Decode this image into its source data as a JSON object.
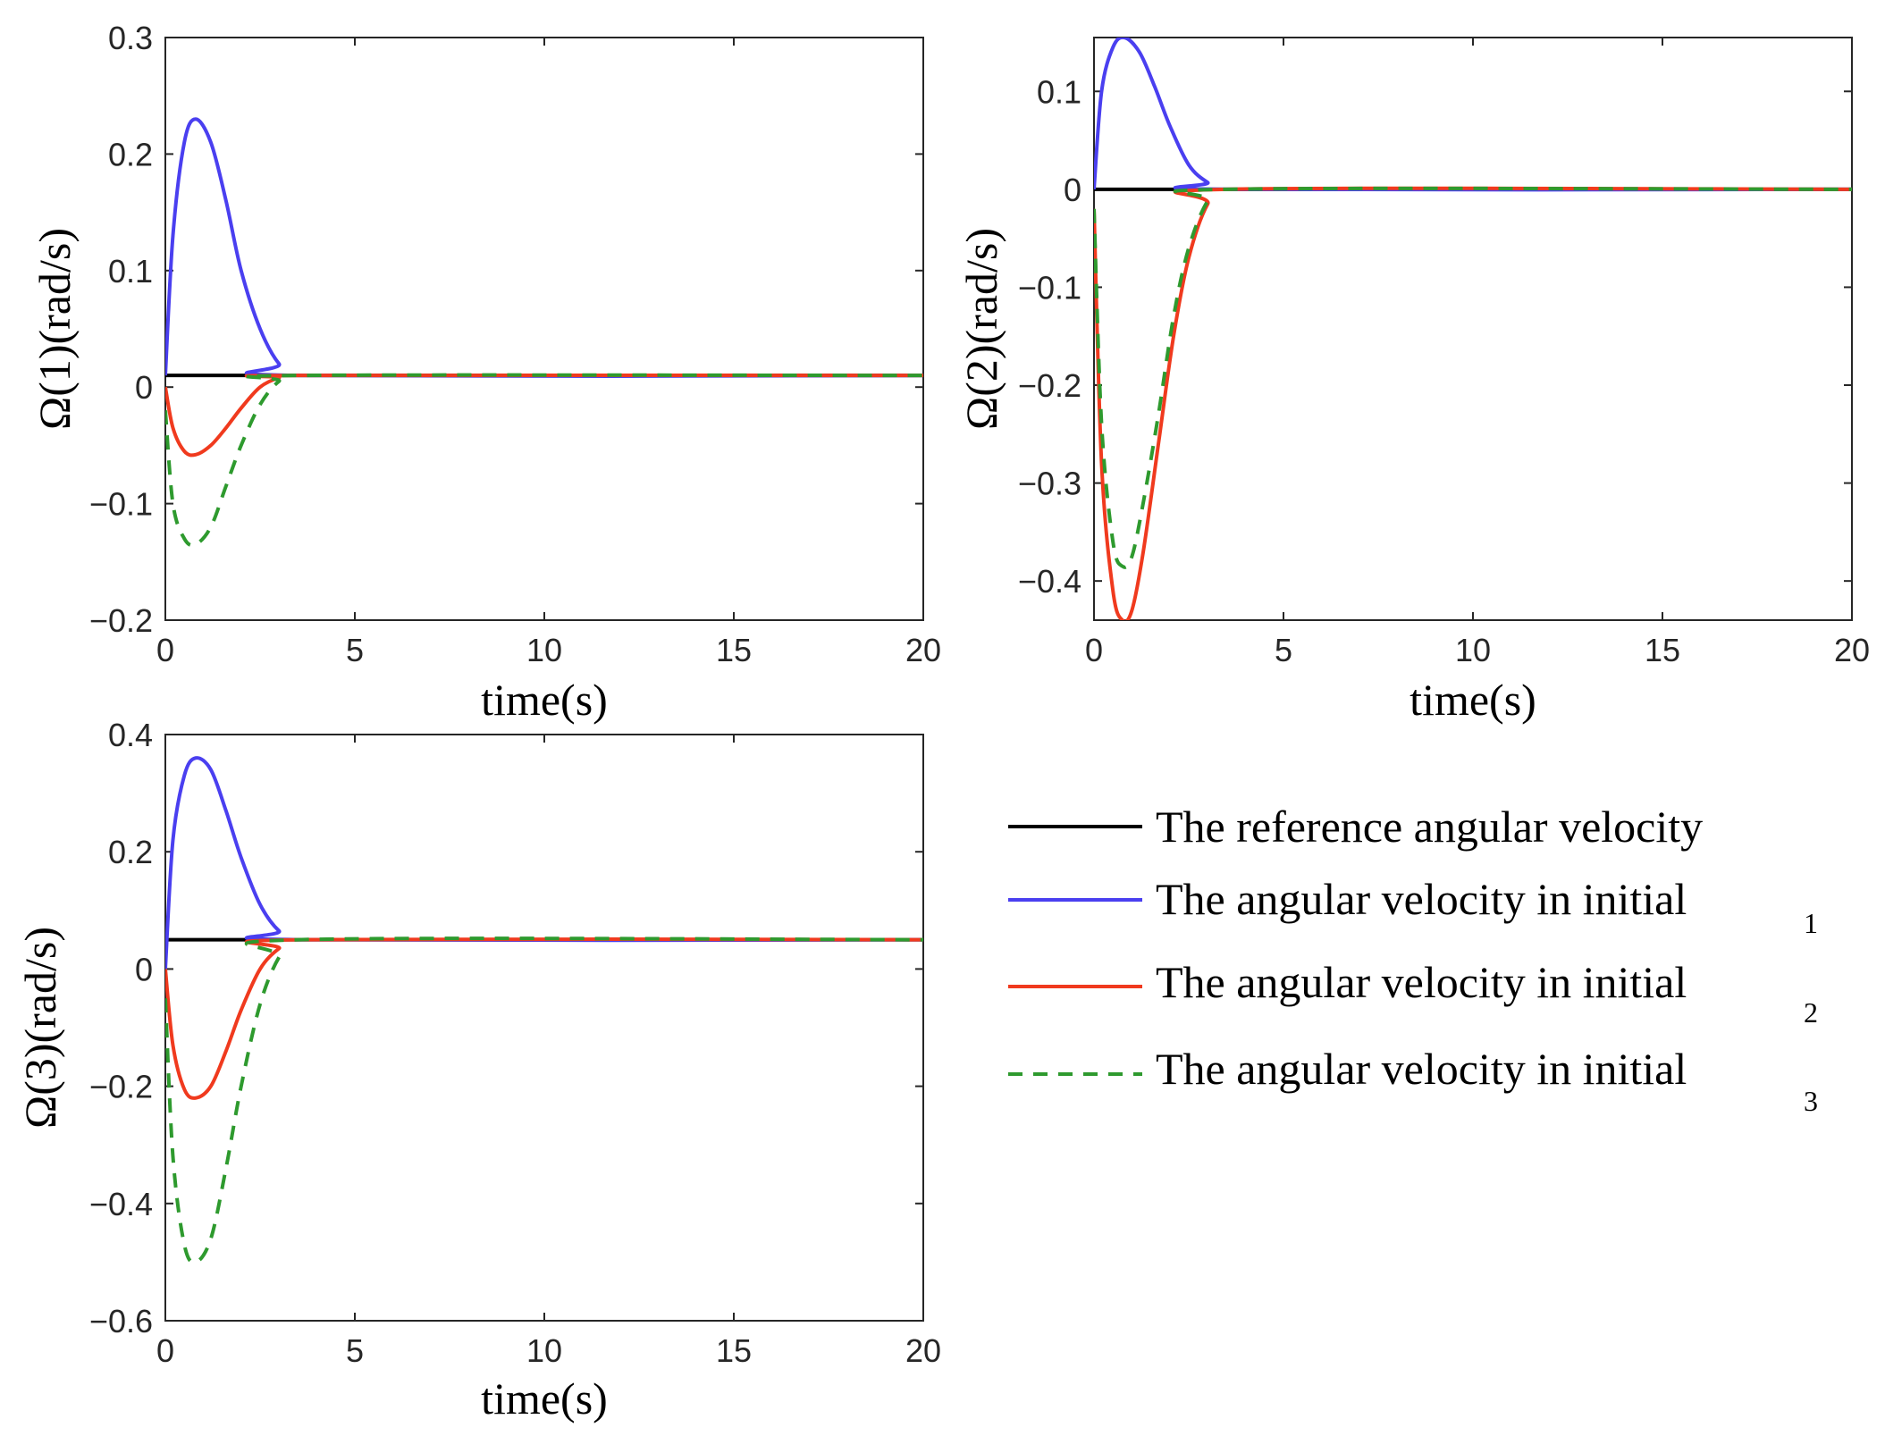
{
  "colors": {
    "reference": "#000000",
    "initial_1": "#4a3ff0",
    "initial_2": "#f03a1e",
    "initial_3": "#2e9a2e",
    "axis": "#262626"
  },
  "legend": {
    "entries": [
      {
        "text": "The reference angular velocity",
        "sub": "",
        "style": "solid",
        "color_key": "reference"
      },
      {
        "text": "The angular velocity in initial",
        "sub": "1",
        "style": "solid",
        "color_key": "initial_1"
      },
      {
        "text": "The angular velocity in initial",
        "sub": "2",
        "style": "solid",
        "color_key": "initial_2"
      },
      {
        "text": "The angular velocity in initial",
        "sub": "3",
        "style": "dashed",
        "color_key": "initial_3"
      }
    ]
  },
  "chart_data": [
    {
      "type": "line",
      "id": "omega1",
      "xlabel": "time(s)",
      "ylabel": "Ω(1)(rad/s)",
      "xlim": [
        0,
        20
      ],
      "ylim": [
        -0.2,
        0.3
      ],
      "xticks": [
        "0",
        "5",
        "10",
        "15",
        "20"
      ],
      "yticks": [
        "−0.2",
        "−0.1",
        "0",
        "0.1",
        "0.2",
        "0.3"
      ],
      "series": [
        {
          "name": "reference",
          "points": [
            [
              0,
              0.01
            ],
            [
              20,
              0.01
            ]
          ]
        },
        {
          "name": "initial_1",
          "points": [
            [
              0,
              0.01
            ],
            [
              0.2,
              0.13
            ],
            [
              0.5,
              0.21
            ],
            [
              0.8,
              0.23
            ],
            [
              1.2,
              0.21
            ],
            [
              1.6,
              0.16
            ],
            [
              2.0,
              0.1
            ],
            [
              2.5,
              0.05
            ],
            [
              3.0,
              0.02
            ],
            [
              3.5,
              0.01
            ],
            [
              20,
              0.01
            ]
          ]
        },
        {
          "name": "initial_2",
          "points": [
            [
              0,
              0.0
            ],
            [
              0.2,
              -0.035
            ],
            [
              0.5,
              -0.055
            ],
            [
              0.8,
              -0.058
            ],
            [
              1.2,
              -0.05
            ],
            [
              1.6,
              -0.035
            ],
            [
              2.0,
              -0.018
            ],
            [
              2.5,
              0.0
            ],
            [
              3.0,
              0.008
            ],
            [
              3.5,
              0.01
            ],
            [
              20,
              0.01
            ]
          ]
        },
        {
          "name": "initial_3",
          "points": [
            [
              0,
              -0.02
            ],
            [
              0.2,
              -0.1
            ],
            [
              0.5,
              -0.13
            ],
            [
              0.8,
              -0.135
            ],
            [
              1.2,
              -0.12
            ],
            [
              1.6,
              -0.085
            ],
            [
              2.0,
              -0.05
            ],
            [
              2.5,
              -0.015
            ],
            [
              3.0,
              0.005
            ],
            [
              3.5,
              0.01
            ],
            [
              20,
              0.01
            ]
          ]
        }
      ]
    },
    {
      "type": "line",
      "id": "omega2",
      "xlabel": "time(s)",
      "ylabel": "Ω(2)(rad/s)",
      "xlim": [
        0,
        20
      ],
      "ylim": [
        -0.44,
        0.155
      ],
      "xticks": [
        "0",
        "5",
        "10",
        "15",
        "20"
      ],
      "yticks": [
        "−0.4",
        "−0.3",
        "−0.2",
        "−0.1",
        "0",
        "0.1"
      ],
      "series": [
        {
          "name": "reference",
          "points": [
            [
              0,
              0.0
            ],
            [
              20,
              0.0
            ]
          ]
        },
        {
          "name": "initial_1",
          "points": [
            [
              0,
              0.0
            ],
            [
              0.2,
              0.1
            ],
            [
              0.5,
              0.145
            ],
            [
              0.8,
              0.155
            ],
            [
              1.2,
              0.14
            ],
            [
              1.6,
              0.105
            ],
            [
              2.0,
              0.065
            ],
            [
              2.5,
              0.025
            ],
            [
              3.0,
              0.007
            ],
            [
              3.5,
              0.0
            ],
            [
              20,
              0.0
            ]
          ]
        },
        {
          "name": "initial_2",
          "points": [
            [
              0,
              -0.02
            ],
            [
              0.2,
              -0.28
            ],
            [
              0.5,
              -0.41
            ],
            [
              0.75,
              -0.44
            ],
            [
              1.0,
              -0.43
            ],
            [
              1.3,
              -0.37
            ],
            [
              1.7,
              -0.26
            ],
            [
              2.1,
              -0.15
            ],
            [
              2.5,
              -0.07
            ],
            [
              3.0,
              -0.015
            ],
            [
              3.5,
              0.0
            ],
            [
              20,
              0.0
            ]
          ]
        },
        {
          "name": "initial_3",
          "points": [
            [
              0,
              -0.02
            ],
            [
              0.2,
              -0.24
            ],
            [
              0.5,
              -0.36
            ],
            [
              0.75,
              -0.385
            ],
            [
              1.0,
              -0.375
            ],
            [
              1.3,
              -0.32
            ],
            [
              1.7,
              -0.23
            ],
            [
              2.1,
              -0.13
            ],
            [
              2.5,
              -0.06
            ],
            [
              3.0,
              -0.012
            ],
            [
              3.5,
              0.0
            ],
            [
              20,
              0.0
            ]
          ]
        }
      ]
    },
    {
      "type": "line",
      "id": "omega3",
      "xlabel": "time(s)",
      "ylabel": "Ω(3)(rad/s)",
      "xlim": [
        0,
        20
      ],
      "ylim": [
        -0.6,
        0.4
      ],
      "xticks": [
        "0",
        "5",
        "10",
        "15",
        "20"
      ],
      "yticks": [
        "−0.6",
        "−0.4",
        "−0.2",
        "0",
        "0.2",
        "0.4"
      ],
      "series": [
        {
          "name": "reference",
          "points": [
            [
              0,
              0.05
            ],
            [
              20,
              0.05
            ]
          ]
        },
        {
          "name": "initial_1",
          "points": [
            [
              0,
              0.0
            ],
            [
              0.2,
              0.22
            ],
            [
              0.5,
              0.33
            ],
            [
              0.8,
              0.36
            ],
            [
              1.2,
              0.34
            ],
            [
              1.6,
              0.27
            ],
            [
              2.0,
              0.19
            ],
            [
              2.5,
              0.11
            ],
            [
              3.0,
              0.065
            ],
            [
              3.5,
              0.05
            ],
            [
              20,
              0.05
            ]
          ]
        },
        {
          "name": "initial_2",
          "points": [
            [
              0,
              0.0
            ],
            [
              0.2,
              -0.13
            ],
            [
              0.5,
              -0.205
            ],
            [
              0.8,
              -0.22
            ],
            [
              1.2,
              -0.2
            ],
            [
              1.6,
              -0.14
            ],
            [
              2.0,
              -0.07
            ],
            [
              2.5,
              0.0
            ],
            [
              3.0,
              0.035
            ],
            [
              3.5,
              0.05
            ],
            [
              20,
              0.05
            ]
          ]
        },
        {
          "name": "initial_3",
          "points": [
            [
              0,
              -0.05
            ],
            [
              0.2,
              -0.32
            ],
            [
              0.5,
              -0.47
            ],
            [
              0.8,
              -0.5
            ],
            [
              1.2,
              -0.46
            ],
            [
              1.6,
              -0.34
            ],
            [
              2.0,
              -0.2
            ],
            [
              2.5,
              -0.06
            ],
            [
              3.0,
              0.02
            ],
            [
              3.5,
              0.05
            ],
            [
              20,
              0.05
            ]
          ]
        }
      ]
    }
  ]
}
